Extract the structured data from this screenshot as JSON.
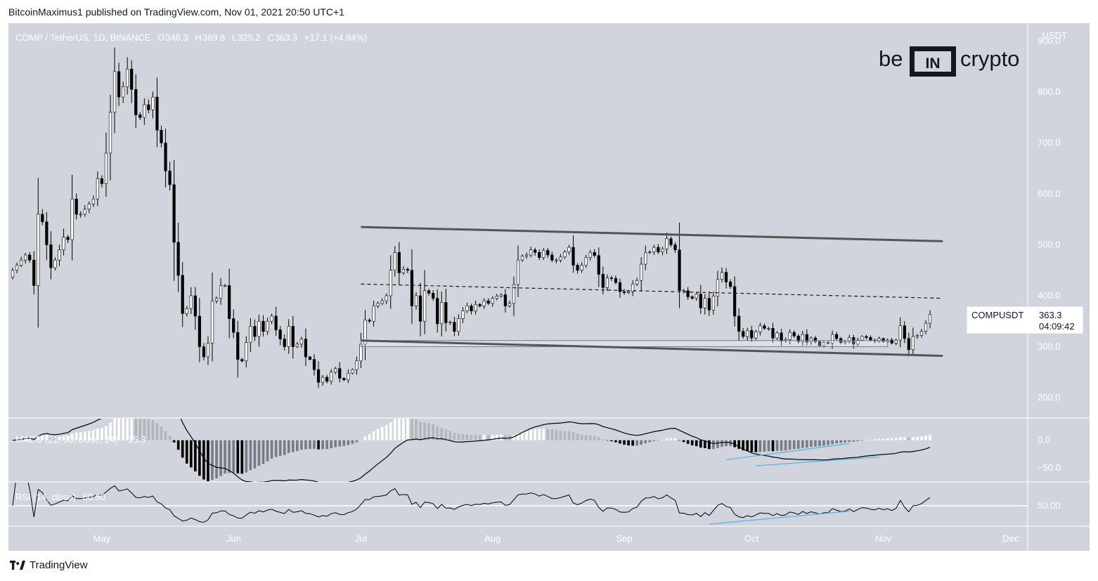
{
  "header": {
    "published": "BitcoinMaximus1 published on TradingView.com, Nov 01, 2021 20:50 UTC+1"
  },
  "legend": {
    "symbol": "COMP / TetherUS, 1D, BINANCE",
    "o_label": "O",
    "open": "346.3",
    "h_label": "H",
    "high": "369.8",
    "l_label": "L",
    "low": "325.2",
    "c_label": "C",
    "close": "363.3",
    "change": "+17.1 (+4.94%)"
  },
  "watermark": {
    "left": "be",
    "mid": "IN",
    "right": "crypto"
  },
  "price_tag": {
    "symbol": "COMPUSDT",
    "price": "363.3",
    "countdown": "04:09:42"
  },
  "footer": {
    "brand": "TradingView"
  },
  "chart_data": {
    "type": "candlestick",
    "currency_label": "USDT",
    "ylim": [
      160,
      935
    ],
    "y_ticks": [
      200,
      300,
      400,
      500,
      600,
      700,
      800,
      900
    ],
    "y_tick_labels": [
      "200.0",
      "300.0",
      "400.0",
      "500.0",
      "600.0",
      "700.0",
      "800.0",
      "900.0"
    ],
    "x_labels": [
      "May",
      "Jun",
      "Jul",
      "Aug",
      "Sep",
      "Oct",
      "Nov",
      "Dec"
    ],
    "x_label_dates": [
      "2021-05-01",
      "2021-06-01",
      "2021-07-01",
      "2021-08-01",
      "2021-09-01",
      "2021-10-01",
      "2021-11-01",
      "2021-12-01"
    ],
    "xlim_dates": [
      "2021-04-09",
      "2021-12-05"
    ],
    "candles_start": "2021-04-10",
    "closes": [
      450,
      460,
      470,
      480,
      470,
      420,
      560,
      545,
      500,
      455,
      470,
      490,
      515,
      510,
      590,
      560,
      560,
      570,
      580,
      590,
      630,
      620,
      680,
      760,
      840,
      790,
      810,
      845,
      805,
      755,
      750,
      775,
      765,
      790,
      725,
      700,
      645,
      618,
      505,
      440,
      365,
      375,
      400,
      360,
      300,
      280,
      307,
      390,
      395,
      420,
      420,
      355,
      328,
      275,
      272,
      308,
      340,
      320,
      350,
      330,
      350,
      360,
      333,
      315,
      300,
      340,
      300,
      305,
      315,
      280,
      275,
      255,
      230,
      240,
      232,
      250,
      257,
      238,
      235,
      248,
      255,
      272,
      305,
      352,
      350,
      380,
      385,
      390,
      400,
      450,
      485,
      445,
      452,
      450,
      380,
      400,
      350,
      410,
      405,
      395,
      345,
      387,
      347,
      348,
      330,
      355,
      370,
      380,
      370,
      383,
      380,
      390,
      385,
      395,
      399,
      402,
      380,
      385,
      422,
      470,
      478,
      480,
      490,
      485,
      475,
      489,
      480,
      470,
      470,
      476,
      486,
      495,
      460,
      450,
      460,
      475,
      485,
      479,
      442,
      416,
      435,
      434,
      426,
      408,
      406,
      408,
      423,
      430,
      462,
      485,
      486,
      495,
      486,
      492,
      512,
      500,
      490,
      410,
      410,
      398,
      395,
      403,
      376,
      395,
      372,
      399,
      432,
      446,
      427,
      418,
      360,
      330,
      320,
      332,
      317,
      329,
      341,
      336,
      336,
      317,
      327,
      311,
      314,
      328,
      321,
      310,
      324,
      309,
      317,
      310,
      302,
      308,
      307,
      324,
      316,
      308,
      310,
      318,
      305,
      313,
      320,
      318,
      313,
      311,
      316,
      310,
      313,
      307,
      313,
      341,
      316,
      294,
      320,
      322,
      330,
      346,
      363
    ],
    "trendlines": {
      "upper": [
        [
          "2021-07-01",
          535
        ],
        [
          "2021-11-15",
          507
        ]
      ],
      "lower": [
        [
          "2021-07-01",
          312
        ],
        [
          "2021-11-15",
          282
        ]
      ],
      "middle_dashed": [
        [
          "2021-07-01",
          423
        ],
        [
          "2021-11-15",
          395
        ]
      ],
      "support_box": {
        "from": "2021-07-01",
        "to": "2021-11-02",
        "low": 300,
        "high": 312
      }
    },
    "macd": {
      "legend": "MACD (21, 50, close, 24)",
      "legend_value": "-15.3",
      "y_ticks": [
        0,
        -50
      ],
      "y_tick_labels": [
        "0.0",
        "−50.0"
      ],
      "ylim": [
        -75,
        40
      ]
    },
    "rsi": {
      "legend": "RSI (14, close)",
      "legend_value": "60.50",
      "y_ticks": [
        50
      ],
      "y_tick_labels": [
        "50.00"
      ],
      "ylim": [
        20,
        85
      ]
    },
    "colors": {
      "bg": "#d1d4dc",
      "up_body": "#ffffff",
      "down_body": "#000000",
      "trendline": "#555555",
      "divergence": "#5fb3e6",
      "hist_pos_strong": "#ffffff",
      "hist_pos_weak": "#b2b5be",
      "hist_neg_strong": "#000000",
      "hist_neg_weak": "#787b86"
    }
  }
}
